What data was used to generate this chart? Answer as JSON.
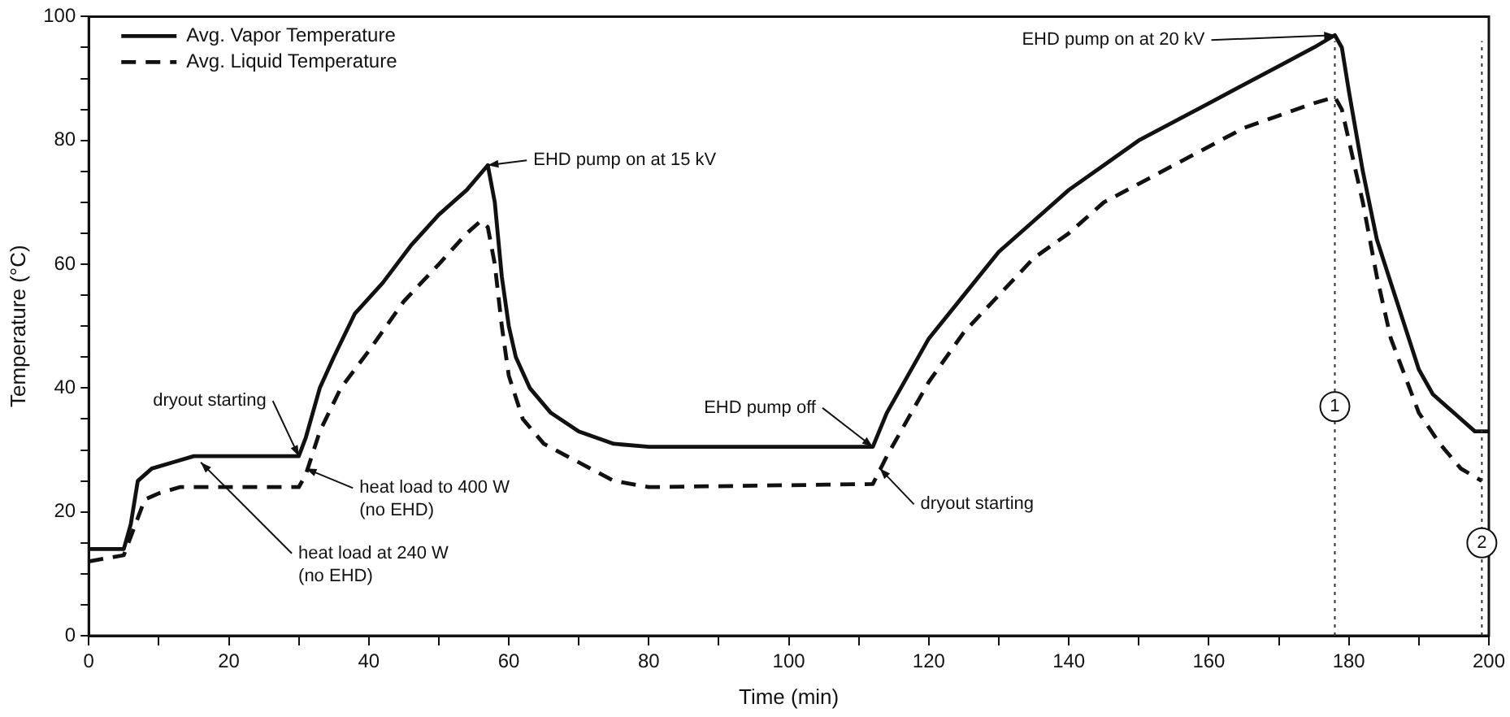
{
  "chart_data": {
    "type": "line",
    "xlabel": "Time (min)",
    "ylabel": "Temperature (°C)",
    "xlim": [
      0,
      200
    ],
    "ylim": [
      0,
      100
    ],
    "xticks": [
      0,
      {
        "value": 10,
        "label": null
      },
      20,
      {
        "value": 30,
        "label": null
      },
      40,
      {
        "value": 50,
        "label": null
      },
      60,
      {
        "value": 70,
        "label": null
      },
      80,
      {
        "value": 90,
        "label": null
      },
      100,
      {
        "value": 110,
        "label": null
      },
      120,
      {
        "value": 130,
        "label": null
      },
      140,
      {
        "value": 150,
        "label": null
      },
      160,
      {
        "value": 170,
        "label": null
      },
      180,
      {
        "value": 190,
        "label": null
      },
      200
    ],
    "yticks": [
      0,
      {
        "value": 5,
        "label": null
      },
      {
        "value": 10,
        "label": null
      },
      {
        "value": 15,
        "label": null
      },
      20,
      {
        "value": 25,
        "label": null
      },
      {
        "value": 30,
        "label": null
      },
      {
        "value": 35,
        "label": null
      },
      40,
      {
        "value": 45,
        "label": null
      },
      {
        "value": 50,
        "label": null
      },
      {
        "value": 55,
        "label": null
      },
      60,
      {
        "value": 65,
        "label": null
      },
      {
        "value": 70,
        "label": null
      },
      {
        "value": 75,
        "label": null
      },
      80,
      {
        "value": 85,
        "label": null
      },
      {
        "value": 90,
        "label": null
      },
      {
        "value": 95,
        "label": null
      },
      100
    ],
    "grid": false,
    "legend": "top left",
    "marker": "none",
    "series": [
      {
        "name": "Avg. Vapor Temperature",
        "color": "#111111",
        "line_style": "solid",
        "x": [
          0,
          5,
          6,
          7,
          9,
          12,
          15,
          30,
          31,
          33,
          35,
          38,
          42,
          46,
          50,
          54,
          57,
          58,
          59,
          60,
          61,
          63,
          66,
          70,
          75,
          80,
          90,
          112,
          114,
          117,
          120,
          125,
          130,
          135,
          140,
          145,
          150,
          155,
          160,
          165,
          170,
          175,
          178,
          179,
          180,
          182,
          184,
          186,
          188,
          190,
          192,
          195,
          198,
          200
        ],
        "values": [
          14,
          14,
          18,
          25,
          27,
          28,
          29,
          29,
          32,
          40,
          45,
          52,
          57,
          63,
          68,
          72,
          76,
          70,
          58,
          50,
          45,
          40,
          36,
          33,
          31,
          30.5,
          30.5,
          30.5,
          36,
          42,
          48,
          55,
          62,
          67,
          72,
          76,
          80,
          83,
          86,
          89,
          92,
          95,
          97,
          95,
          88,
          75,
          64,
          57,
          50,
          43,
          39,
          36,
          33,
          33
        ]
      },
      {
        "name": "Avg. Liquid Temperature",
        "color": "#111111",
        "line_style": "dashed",
        "x": [
          0,
          5,
          6,
          8,
          10,
          13,
          30,
          31,
          33,
          36,
          40,
          45,
          50,
          54,
          56,
          57,
          58,
          59,
          60,
          62,
          65,
          70,
          75,
          80,
          112,
          114,
          117,
          120,
          125,
          130,
          135,
          140,
          145,
          150,
          155,
          160,
          165,
          170,
          175,
          178,
          179,
          180,
          182,
          184,
          186,
          188,
          190,
          193,
          196,
          199
        ],
        "values": [
          12,
          13,
          16,
          22,
          23,
          24,
          24,
          26,
          33,
          40,
          46,
          54,
          60,
          65,
          67,
          66,
          60,
          50,
          42,
          35,
          31,
          28,
          25,
          24,
          24.5,
          29,
          35,
          41,
          49,
          55,
          61,
          65,
          70,
          73,
          76,
          79,
          82,
          84,
          86,
          87,
          85,
          80,
          70,
          58,
          48,
          42,
          36,
          31,
          27,
          25
        ]
      }
    ],
    "ref_lines": [
      {
        "axis": "x",
        "value": 178,
        "line_style": "dotted"
      },
      {
        "axis": "x",
        "value": 199,
        "line_style": "dotted"
      }
    ],
    "annotations": [
      {
        "text": "dryout starting",
        "x": 30,
        "y": 29
      },
      {
        "text": "heat load to 400 W\n(no EHD)",
        "x": 31,
        "y": 27
      },
      {
        "text": "heat load at 240 W\n(no EHD)",
        "x": 16,
        "y": 28
      },
      {
        "text": "EHD pump on at 15 kV",
        "x": 57,
        "y": 76
      },
      {
        "text": "EHD pump off",
        "x": 112,
        "y": 30.5
      },
      {
        "text": "dryout starting",
        "x": 113,
        "y": 27
      },
      {
        "text": "EHD pump on at 20 kV",
        "x": 178,
        "y": 97
      },
      {
        "text": "1",
        "x": 178,
        "y": 37
      },
      {
        "text": "2",
        "x": 199,
        "y": 15
      }
    ]
  }
}
